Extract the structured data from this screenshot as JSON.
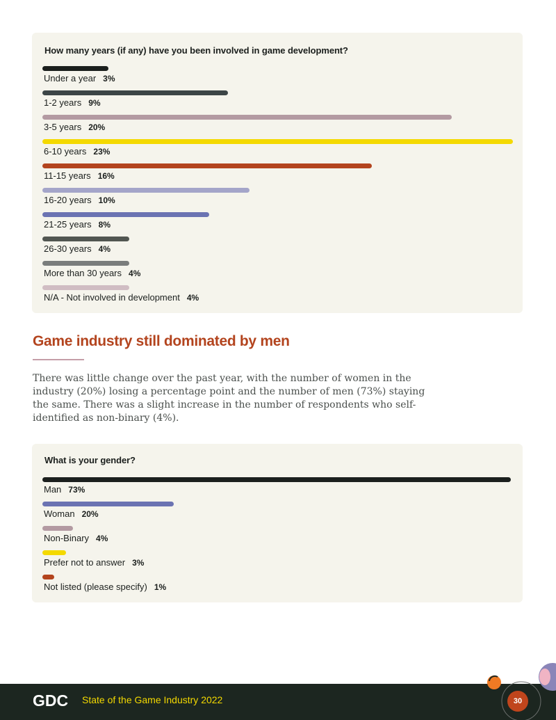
{
  "survey1": {
    "question": "How many years (if any) have you been involved in game development?",
    "rows": [
      {
        "label": "Under a year",
        "pct": "3%",
        "value": 14,
        "color": "#1b1f1d"
      },
      {
        "label": "1-2 years",
        "pct": "9%",
        "value": 39.5,
        "color": "#3c4546"
      },
      {
        "label": "3-5 years",
        "pct": "20%",
        "value": 87,
        "color": "#b39aa2"
      },
      {
        "label": "6-10 years",
        "pct": "23%",
        "value": 100,
        "color": "#f4d900"
      },
      {
        "label": "11-15 years",
        "pct": "16%",
        "value": 70,
        "color": "#b3441e"
      },
      {
        "label": "16-20 years",
        "pct": "10%",
        "value": 44,
        "color": "#a4a5c9"
      },
      {
        "label": "21-25 years",
        "pct": "8%",
        "value": 35.5,
        "color": "#6b73b2"
      },
      {
        "label": "26-30 years",
        "pct": "4%",
        "value": 18.5,
        "color": "#515651"
      },
      {
        "label": "More than 30 years",
        "pct": "4%",
        "value": 18.5,
        "color": "#7a7d7c"
      },
      {
        "label": "N/A - Not involved in development",
        "pct": "4%",
        "value": 18.5,
        "color": "#d0bdc3"
      }
    ]
  },
  "section": {
    "heading": "Game industry still dominated by men",
    "body": "There was little change over the past year, with the number of women in the industry (20%) losing a percentage point and the number of men (73%) staying the same. There was a slight increase in the number of respondents who self-identified as non-binary (4%)."
  },
  "survey2": {
    "question": "What is your gender?",
    "rows": [
      {
        "label": "Man",
        "pct": "73%",
        "value": 100,
        "color": "#1b1f1d"
      },
      {
        "label": "Woman",
        "pct": "20%",
        "value": 28,
        "color": "#6b73b2"
      },
      {
        "label": "Non-Binary",
        "pct": "4%",
        "value": 6.5,
        "color": "#b39aa2"
      },
      {
        "label": "Prefer not to answer",
        "pct": "3%",
        "value": 5,
        "color": "#f4d900"
      },
      {
        "label": "Not listed (please specify)",
        "pct": "1%",
        "value": 2.5,
        "color": "#b3441e"
      }
    ]
  },
  "footer": {
    "logo_text": "GDC",
    "title": "State of the Game Industry 2022",
    "page_number": "30"
  }
}
